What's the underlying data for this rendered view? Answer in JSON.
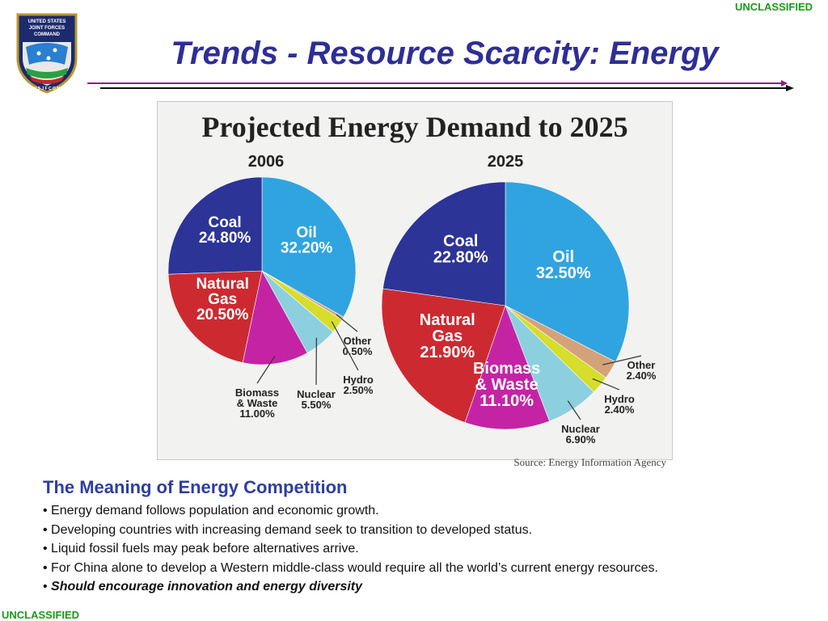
{
  "classification": {
    "top": "UNCLASSIFIED",
    "bottom": "UNCLASSIFIED"
  },
  "logo": {
    "line1": "UNITED STATES",
    "line2": "JOINT FORCES",
    "line3": "COMMAND",
    "ring": "U S J F C O M"
  },
  "slide_title": "Trends - Resource Scarcity: Energy",
  "colors": {
    "title": "#2e2e96",
    "classification": "#1a9a1a",
    "rule_purple": "#8b1a8b"
  },
  "chart_data": {
    "type": "pie",
    "title": "Projected Energy Demand to 2025",
    "source": "Source: Energy Information Agency",
    "pies": [
      {
        "label": "2006",
        "slices": [
          {
            "name": "Oil",
            "value": 32.2,
            "text": "32.20%",
            "color": "#30a4e0"
          },
          {
            "name": "Other",
            "value": 0.5,
            "text": "0.50%",
            "color": "#d4a27a"
          },
          {
            "name": "Hydro",
            "value": 2.5,
            "text": "2.50%",
            "color": "#d6dd2a"
          },
          {
            "name": "Nuclear",
            "value": 5.5,
            "text": "5.50%",
            "color": "#8cd0e0"
          },
          {
            "name": "Biomass & Waste",
            "value": 11.0,
            "text": "11.00%",
            "color": "#c424a4"
          },
          {
            "name": "Natural Gas",
            "value": 20.5,
            "text": "20.50%",
            "color": "#cc2a30"
          },
          {
            "name": "Coal",
            "value": 24.8,
            "text": "24.80%",
            "color": "#2c3497"
          }
        ]
      },
      {
        "label": "2025",
        "slices": [
          {
            "name": "Oil",
            "value": 32.5,
            "text": "32.50%",
            "color": "#30a4e0"
          },
          {
            "name": "Other",
            "value": 2.4,
            "text": "2.40%",
            "color": "#d4a27a"
          },
          {
            "name": "Hydro",
            "value": 2.4,
            "text": "2.40%",
            "color": "#d6dd2a"
          },
          {
            "name": "Nuclear",
            "value": 6.9,
            "text": "6.90%",
            "color": "#8cd0e0"
          },
          {
            "name": "Biomass & Waste",
            "value": 11.1,
            "text": "11.10%",
            "color": "#c424a4"
          },
          {
            "name": "Natural Gas",
            "value": 21.9,
            "text": "21.90%",
            "color": "#cc2a30"
          },
          {
            "name": "Coal",
            "value": 22.8,
            "text": "22.80%",
            "color": "#2c3497"
          }
        ]
      }
    ]
  },
  "text": {
    "heading": "The Meaning of Energy Competition",
    "bullets": [
      "Energy demand follows population and economic growth.",
      "Developing countries with increasing demand seek to transition to developed status.",
      "Liquid fossil fuels may peak before alternatives arrive.",
      "For China alone to develop a Western middle-class would require all the world’s current energy resources.",
      "Should encourage innovation and energy diversity"
    ]
  }
}
